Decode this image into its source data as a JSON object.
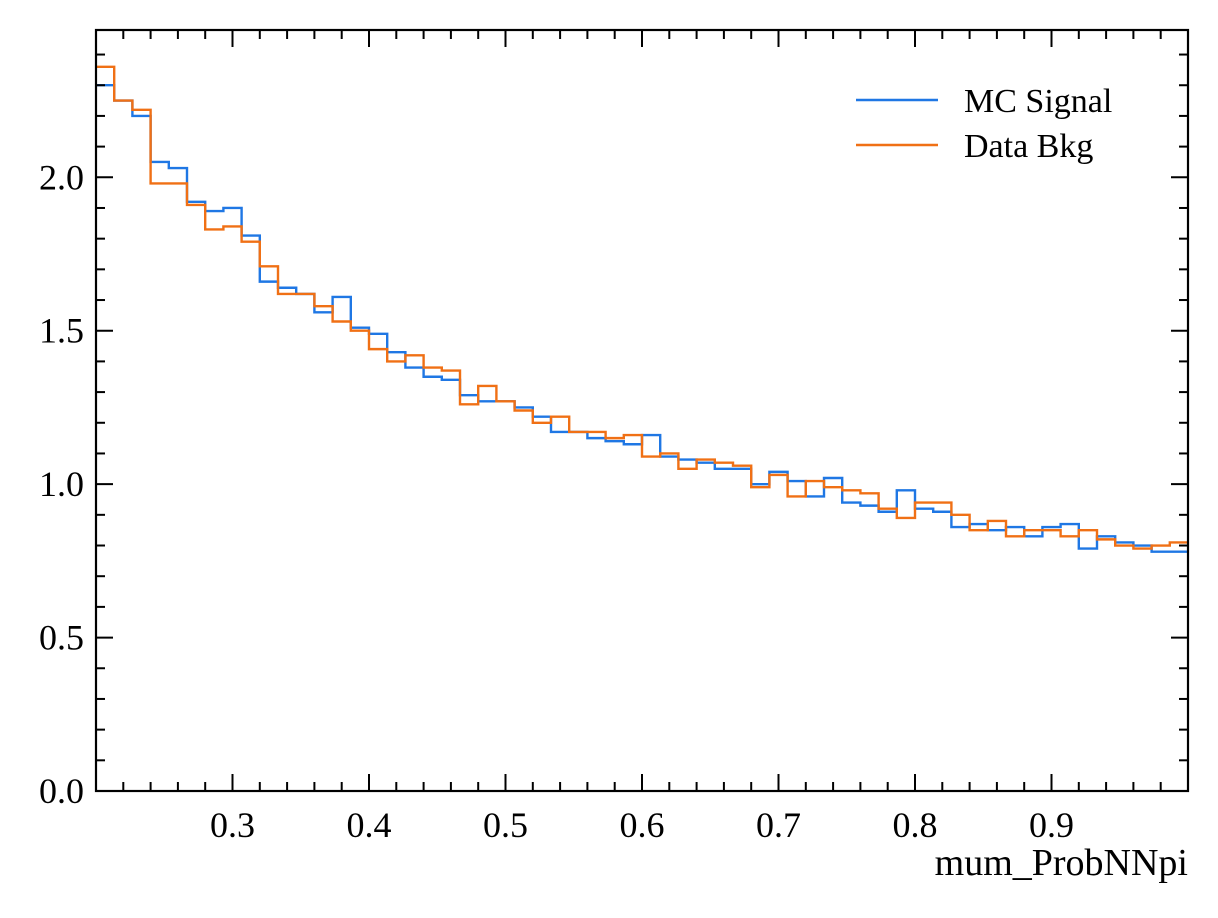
{
  "chart_data": {
    "type": "step-histogram",
    "xlabel": "mum_ProbNNpi",
    "ylabel": "",
    "xlim": [
      0.2,
      1.0
    ],
    "ylim": [
      0.0,
      2.48
    ],
    "bins": 60,
    "bin_edges_range": [
      0.2,
      1.0
    ],
    "x_ticks": [
      0.3,
      0.4,
      0.5,
      0.6,
      0.7,
      0.8,
      0.9
    ],
    "x_tick_labels": [
      "0.3",
      "0.4",
      "0.5",
      "0.6",
      "0.7",
      "0.8",
      "0.9"
    ],
    "y_ticks": [
      0.0,
      0.5,
      1.0,
      1.5,
      2.0
    ],
    "y_tick_labels": [
      "0.0",
      "0.5",
      "1.0",
      "1.5",
      "2.0"
    ],
    "x_minor_step": 0.02,
    "y_minor_step": 0.1,
    "legend_position": "top-right",
    "grid": false,
    "series": [
      {
        "name": "MC Signal",
        "color": "#1f77e4",
        "values": [
          2.3,
          2.25,
          2.2,
          2.05,
          2.03,
          1.92,
          1.89,
          1.9,
          1.81,
          1.66,
          1.64,
          1.62,
          1.56,
          1.61,
          1.51,
          1.49,
          1.43,
          1.38,
          1.35,
          1.34,
          1.29,
          1.27,
          1.27,
          1.25,
          1.22,
          1.17,
          1.17,
          1.15,
          1.14,
          1.13,
          1.16,
          1.09,
          1.08,
          1.07,
          1.05,
          1.05,
          1.0,
          1.04,
          1.01,
          0.96,
          1.02,
          0.94,
          0.93,
          0.91,
          0.98,
          0.92,
          0.91,
          0.86,
          0.87,
          0.85,
          0.86,
          0.83,
          0.86,
          0.87,
          0.79,
          0.83,
          0.81,
          0.8,
          0.78,
          0.78
        ]
      },
      {
        "name": "Data Bkg",
        "color": "#f07015",
        "values": [
          2.36,
          2.25,
          2.22,
          1.98,
          1.98,
          1.91,
          1.83,
          1.84,
          1.79,
          1.71,
          1.62,
          1.62,
          1.58,
          1.53,
          1.5,
          1.44,
          1.4,
          1.42,
          1.38,
          1.37,
          1.26,
          1.32,
          1.27,
          1.24,
          1.2,
          1.22,
          1.17,
          1.17,
          1.15,
          1.16,
          1.09,
          1.1,
          1.05,
          1.08,
          1.07,
          1.06,
          0.99,
          1.03,
          0.96,
          1.01,
          0.99,
          0.98,
          0.97,
          0.92,
          0.89,
          0.94,
          0.94,
          0.9,
          0.85,
          0.88,
          0.83,
          0.85,
          0.85,
          0.83,
          0.85,
          0.82,
          0.8,
          0.79,
          0.8,
          0.81
        ]
      }
    ]
  }
}
